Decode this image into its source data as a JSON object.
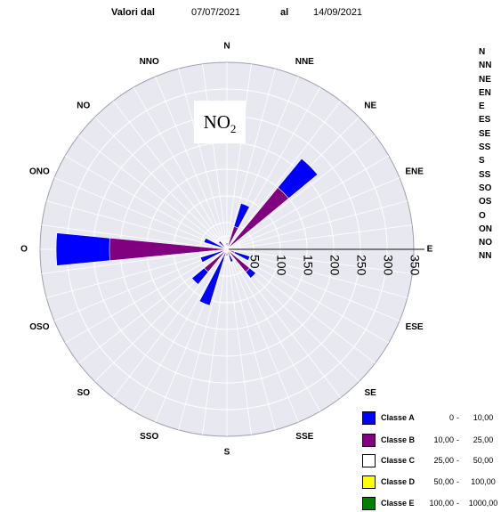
{
  "header": {
    "from_label": "Valori dal",
    "from_date": "07/07/2021",
    "to_label": "al",
    "to_date": "14/09/2021"
  },
  "pollutant": {
    "main": "NO",
    "sub": "2"
  },
  "side_list": [
    "N",
    "NN",
    "NE",
    "EN",
    "E",
    "ES",
    "SE",
    "SS",
    "S",
    "SS",
    "SO",
    "OS",
    "O",
    "ON",
    "NO",
    "NN"
  ],
  "legend": [
    {
      "label": "Classe A",
      "low": "0",
      "high": "10,00",
      "color": "#0000ff"
    },
    {
      "label": "Classe B",
      "low": "10,00",
      "high": "25,00",
      "color": "#800080"
    },
    {
      "label": "Classe C",
      "low": "25,00",
      "high": "50,00",
      "color": "#ffffff"
    },
    {
      "label": "Classe D",
      "low": "50,00",
      "high": "100,00",
      "color": "#ffff00"
    },
    {
      "label": "Classe E",
      "low": "100,00",
      "high": "1000,00",
      "color": "#008000"
    }
  ],
  "chart_data": {
    "type": "wind_rose",
    "directions": [
      "N",
      "NNE",
      "NE",
      "ENE",
      "E",
      "ESE",
      "SE",
      "SSE",
      "S",
      "SSO",
      "SO",
      "OSO",
      "O",
      "ONO",
      "NO",
      "NNO"
    ],
    "radial_ticks": [
      50,
      100,
      150,
      200,
      250,
      300,
      350
    ],
    "radial_max": 350,
    "background_color": "#e8e8f0",
    "series": [
      {
        "name": "Classe A",
        "color": "#0000ff",
        "values": [
          12,
          90,
          220,
          3,
          2,
          45,
          70,
          25,
          12,
          110,
          85,
          52,
          320,
          45,
          20,
          3
        ]
      },
      {
        "name": "Classe B",
        "color": "#800080",
        "values": [
          5,
          45,
          150,
          0,
          0,
          15,
          55,
          12,
          5,
          15,
          55,
          0,
          220,
          0,
          0,
          0
        ]
      }
    ]
  }
}
